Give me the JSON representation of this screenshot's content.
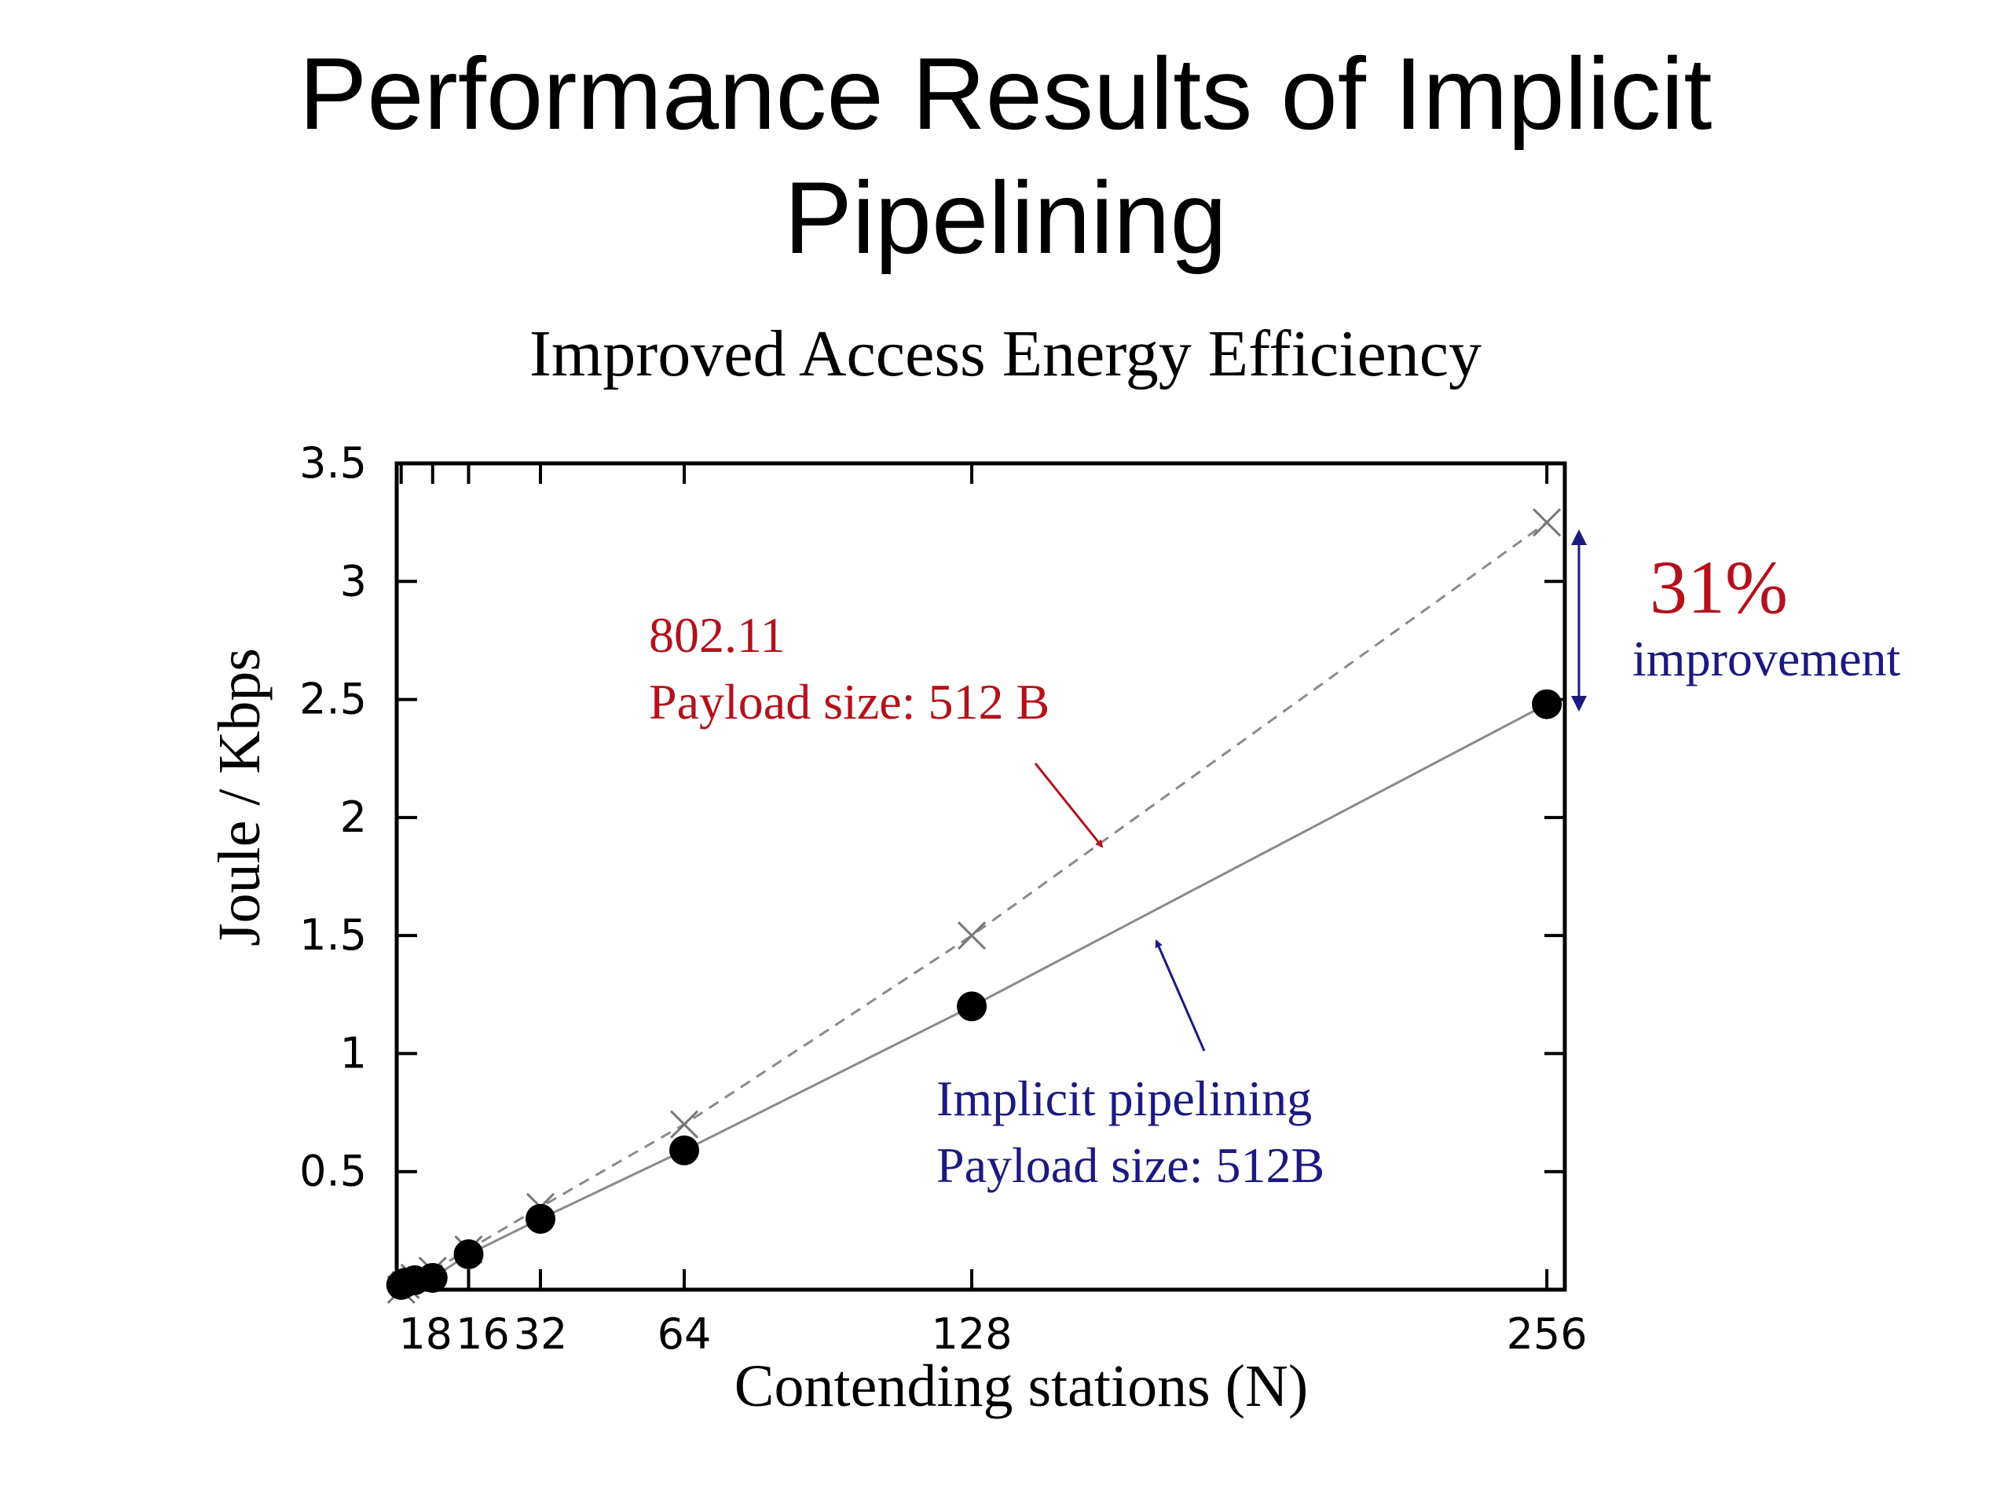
{
  "slide": {
    "title_line1": "Performance Results of Implicit",
    "title_line2": "Pipelining",
    "subtitle": "Improved Access Energy Efficiency"
  },
  "chart_data": {
    "type": "line",
    "title": "",
    "xlabel": "Contending stations (N)",
    "ylabel": "Joule / Kbps",
    "xlim": [
      0,
      260
    ],
    "ylim": [
      0,
      3.5
    ],
    "x_ticks": [
      1,
      8,
      16,
      32,
      64,
      128,
      256
    ],
    "x_tick_labels": [
      "1",
      "8",
      "16",
      "32",
      "64",
      "128",
      "256"
    ],
    "y_ticks": [
      0.5,
      1,
      1.5,
      2,
      2.5,
      3,
      3.5
    ],
    "y_tick_labels": [
      "0.5",
      "1",
      "1.5",
      "2",
      "2.5",
      "3",
      "3.5"
    ],
    "grid": false,
    "series": [
      {
        "name": "802.11",
        "marker": "x",
        "line": "dashed",
        "color": "#8a8a8a",
        "x": [
          1,
          2,
          4,
          8,
          16,
          32,
          64,
          128,
          256
        ],
        "y": [
          0.0,
          0.02,
          0.05,
          0.08,
          0.17,
          0.35,
          0.7,
          1.5,
          3.25
        ]
      },
      {
        "name": "Implicit pipelining",
        "marker": "filled-circle",
        "line": "solid",
        "color": "#8a8a8a",
        "x": [
          1,
          2,
          4,
          8,
          16,
          32,
          64,
          128,
          256
        ],
        "y": [
          0.02,
          0.03,
          0.04,
          0.05,
          0.15,
          0.3,
          0.59,
          1.2,
          2.48
        ]
      }
    ],
    "annotations": {
      "series1_label_line1": "802.11",
      "series1_label_line2": "Payload size: 512 B",
      "series2_label_line1": "Implicit pipelining",
      "series2_label_line2": "Payload size: 512B",
      "improvement_value": "31%",
      "improvement_text": "improvement",
      "red": "#b3121b",
      "blue": "#1a1a80"
    }
  }
}
